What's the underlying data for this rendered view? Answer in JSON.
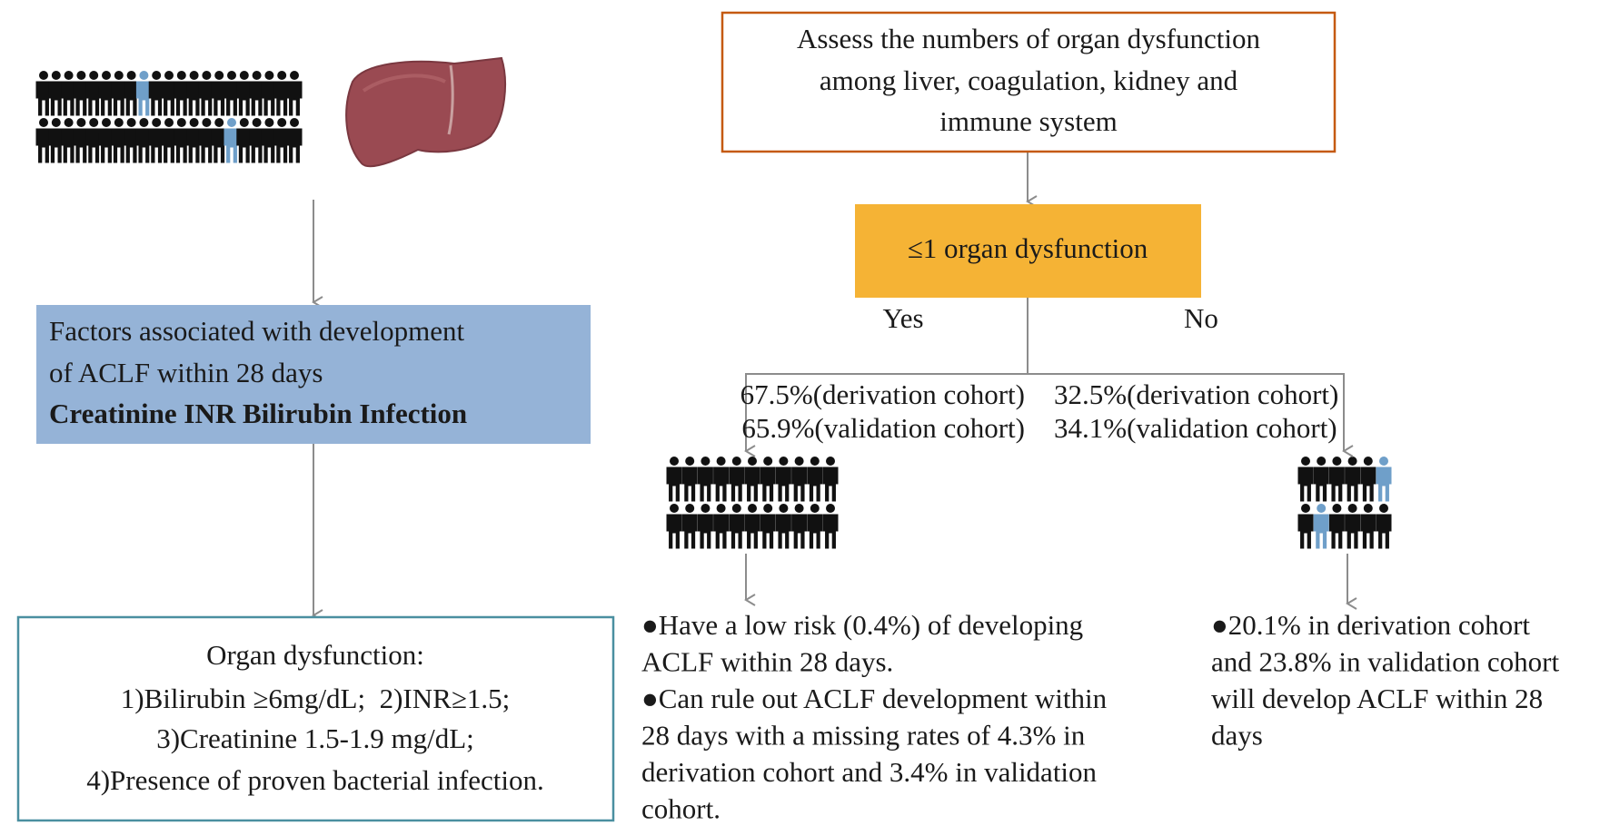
{
  "left": {
    "factors_box": {
      "lines": [
        "Factors associated with development",
        "of ACLF within 28 days"
      ],
      "bold_line": "Creatinine INR Bilirubin Infection"
    },
    "organ_box": {
      "lines": [
        "Organ dysfunction:",
        "1)Bilirubin ≥6mg/dL;  2)INR≥1.5;",
        "3)Creatinine 1.5-1.9 mg/dL;",
        "4)Presence of proven bacterial infection."
      ]
    }
  },
  "right": {
    "assess_box": {
      "lines": [
        "Assess the numbers of organ dysfunction",
        "among liver, coagulation, kidney and",
        "immune system"
      ]
    },
    "decision": "≤1 organ dysfunction",
    "yes": "Yes",
    "no": "No",
    "yes_rates": [
      "67.5%(derivation cohort)",
      "65.9%(validation cohort)"
    ],
    "no_rates": [
      "32.5%(derivation cohort)",
      "34.1%(validation cohort)"
    ],
    "yes_outcome": [
      "●Have a low risk (0.4%) of developing",
      "ACLF within 28 days.",
      "●Can rule out ACLF development within",
      "28 days with a missing rates of 4.3% in",
      "derivation cohort and 3.4% in validation",
      "cohort."
    ],
    "no_outcome": [
      "●20.1% in derivation cohort",
      "and 23.8% in validation cohort",
      "will develop ACLF within 28",
      "days"
    ]
  }
}
